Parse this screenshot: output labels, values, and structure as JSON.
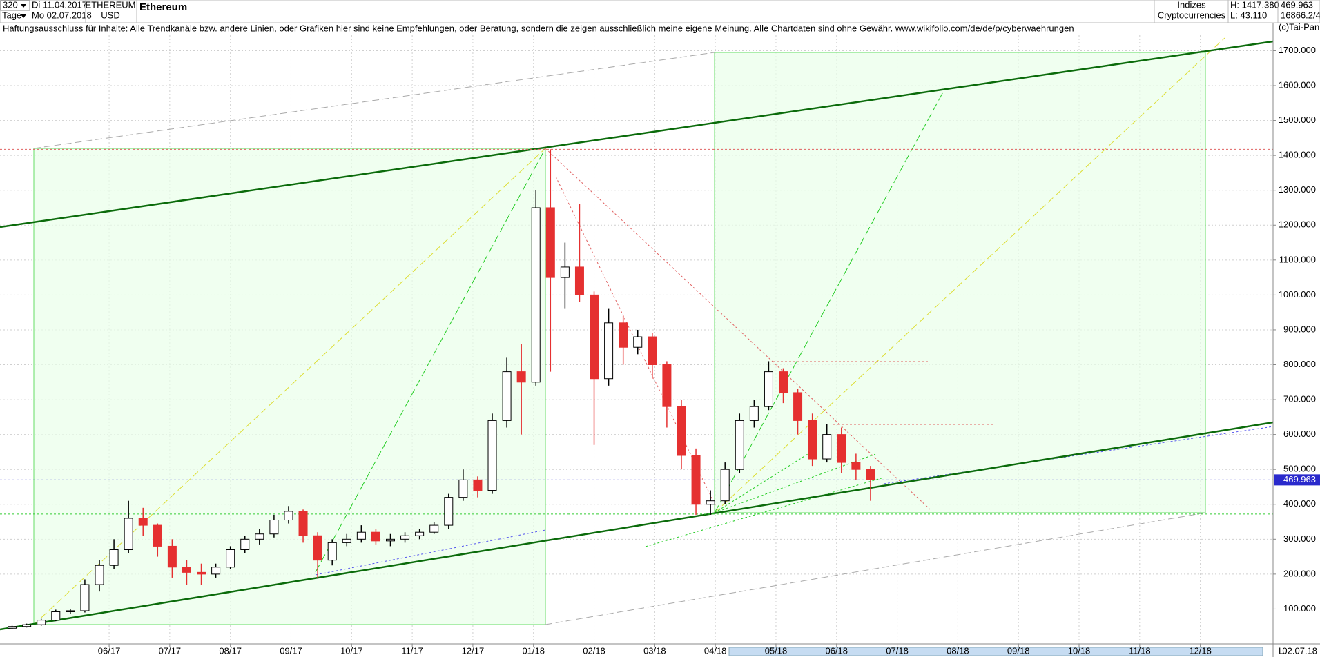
{
  "header": {
    "period": "320",
    "start": "Di 11.04.2017",
    "unit": "Tage",
    "end": "Mo 02.07.2018",
    "symbol": "ETHEREUM",
    "currency": "USD",
    "name": "Ethereum",
    "group": "Indizes",
    "category": "Cryptocurrencies",
    "high": "H: 1417.380",
    "low": "L: 43.110",
    "last": "469.963",
    "volume": "16866.2/4",
    "disclaimer": "Haftungsausschluss für Inhalte: Alle Trendkanäle bzw. andere Linien, oder Grafiken hier sind keine Empfehlungen, oder Beratung, sondern die zeigen ausschließlich meine eigene Meinung. Alle Chartdaten sind ohne Gewähr.  www.wikifolio.com/de/de/p/cyberwaehrungen",
    "copyright": "(c)Tai-Pan",
    "scale_mode": "L",
    "date": "02.07.18"
  },
  "chart_data": {
    "type": "candlestick",
    "x": [
      -1.6,
      -1.36,
      -1.12,
      -0.88,
      -0.64,
      -0.4,
      -0.16,
      0.08,
      0.32,
      0.56,
      0.8,
      1.04,
      1.28,
      1.52,
      1.76,
      2.0,
      2.24,
      2.48,
      2.72,
      2.96,
      3.2,
      3.44,
      3.68,
      3.92,
      4.16,
      4.4,
      4.64,
      4.88,
      5.12,
      5.36,
      5.6,
      5.84,
      6.08,
      6.32,
      6.56,
      6.8,
      7.04,
      7.28,
      7.52,
      7.76,
      8.0,
      8.24,
      8.48,
      8.72,
      8.96,
      9.2,
      9.44,
      9.68,
      9.92,
      10.16,
      10.4,
      10.64,
      10.88,
      11.12,
      11.36,
      11.6,
      11.84,
      12.08,
      12.32,
      12.56
    ],
    "open": [
      45,
      50,
      55,
      68,
      92,
      95,
      170,
      225,
      270,
      360,
      340,
      280,
      220,
      205,
      200,
      220,
      270,
      300,
      315,
      355,
      380,
      310,
      240,
      290,
      300,
      320,
      295,
      300,
      310,
      320,
      340,
      420,
      470,
      440,
      640,
      780,
      750,
      1250,
      1050,
      1080,
      1000,
      760,
      920,
      850,
      880,
      800,
      680,
      540,
      400,
      410,
      500,
      640,
      680,
      780,
      720,
      640,
      530,
      600,
      520,
      500
    ],
    "high": [
      52,
      58,
      72,
      98,
      100,
      185,
      240,
      300,
      410,
      390,
      345,
      300,
      240,
      230,
      230,
      280,
      310,
      330,
      370,
      395,
      385,
      320,
      300,
      315,
      340,
      330,
      315,
      320,
      330,
      350,
      430,
      500,
      480,
      660,
      820,
      860,
      1300,
      1417.38,
      1150,
      1260,
      1010,
      960,
      940,
      900,
      890,
      810,
      700,
      560,
      440,
      520,
      660,
      700,
      810,
      790,
      730,
      660,
      630,
      620,
      545,
      510
    ],
    "low": [
      43.11,
      47,
      52,
      65,
      86,
      90,
      150,
      215,
      260,
      310,
      250,
      190,
      170,
      170,
      190,
      215,
      260,
      285,
      305,
      345,
      290,
      190,
      225,
      280,
      290,
      285,
      280,
      290,
      300,
      315,
      330,
      410,
      420,
      430,
      620,
      600,
      740,
      780,
      960,
      980,
      570,
      740,
      800,
      830,
      760,
      620,
      500,
      370,
      370,
      400,
      490,
      620,
      670,
      690,
      600,
      510,
      520,
      490,
      470,
      410
    ],
    "close": [
      50,
      55,
      68,
      92,
      95,
      170,
      225,
      270,
      360,
      340,
      280,
      220,
      205,
      200,
      220,
      270,
      300,
      315,
      355,
      380,
      310,
      240,
      290,
      300,
      320,
      295,
      300,
      310,
      320,
      340,
      420,
      470,
      440,
      640,
      780,
      750,
      1250,
      1050,
      1080,
      1000,
      760,
      920,
      850,
      880,
      800,
      680,
      540,
      400,
      410,
      500,
      640,
      680,
      780,
      720,
      640,
      530,
      600,
      520,
      500,
      469.963
    ],
    "up_color": "#ffffff",
    "down_color": "#e53030",
    "xlim": [
      -1.8,
      19.2
    ],
    "xticks": [
      {
        "value": 0,
        "label": "06/17"
      },
      {
        "value": 1,
        "label": "07/17"
      },
      {
        "value": 2,
        "label": "08/17"
      },
      {
        "value": 3,
        "label": "09/17"
      },
      {
        "value": 4,
        "label": "10/17"
      },
      {
        "value": 5,
        "label": "11/17"
      },
      {
        "value": 6,
        "label": "12/17"
      },
      {
        "value": 7,
        "label": "01/18"
      },
      {
        "value": 8,
        "label": "02/18"
      },
      {
        "value": 9,
        "label": "03/18"
      },
      {
        "value": 10,
        "label": "04/18"
      },
      {
        "value": 11,
        "label": "05/18"
      },
      {
        "value": 12,
        "label": "06/18"
      },
      {
        "value": 13,
        "label": "07/18"
      },
      {
        "value": 14,
        "label": "08/18"
      },
      {
        "value": 15,
        "label": "09/18"
      },
      {
        "value": 16,
        "label": "10/18"
      },
      {
        "value": 17,
        "label": "11/18"
      },
      {
        "value": 18,
        "label": "12/18"
      }
    ],
    "ylim": [
      0,
      1780
    ],
    "yticks": [
      {
        "value": 100,
        "label": "100.000"
      },
      {
        "value": 200,
        "label": "200.000"
      },
      {
        "value": 300,
        "label": "300.000"
      },
      {
        "value": 400,
        "label": "400.000"
      },
      {
        "value": 500,
        "label": "500.000"
      },
      {
        "value": 600,
        "label": "600.000"
      },
      {
        "value": 700,
        "label": "700.000"
      },
      {
        "value": 800,
        "label": "800.000"
      },
      {
        "value": 900,
        "label": "900.000"
      },
      {
        "value": 1000,
        "label": "1000.000"
      },
      {
        "value": 1100,
        "label": "1100.000"
      },
      {
        "value": 1200,
        "label": "1200.000"
      },
      {
        "value": 1300,
        "label": "1300.000"
      },
      {
        "value": 1400,
        "label": "1400.000"
      },
      {
        "value": 1500,
        "label": "1500.000"
      },
      {
        "value": 1600,
        "label": "1600.000"
      },
      {
        "value": 1700,
        "label": "1700.000"
      }
    ],
    "grid": true,
    "price_marker": {
      "value": 469.963,
      "label": "469.963",
      "color": "#2a2acc"
    },
    "reference_lines": [
      {
        "value": 1417.38,
        "color": "#e06060"
      },
      {
        "value": 372,
        "color": "#33cc33"
      }
    ]
  }
}
